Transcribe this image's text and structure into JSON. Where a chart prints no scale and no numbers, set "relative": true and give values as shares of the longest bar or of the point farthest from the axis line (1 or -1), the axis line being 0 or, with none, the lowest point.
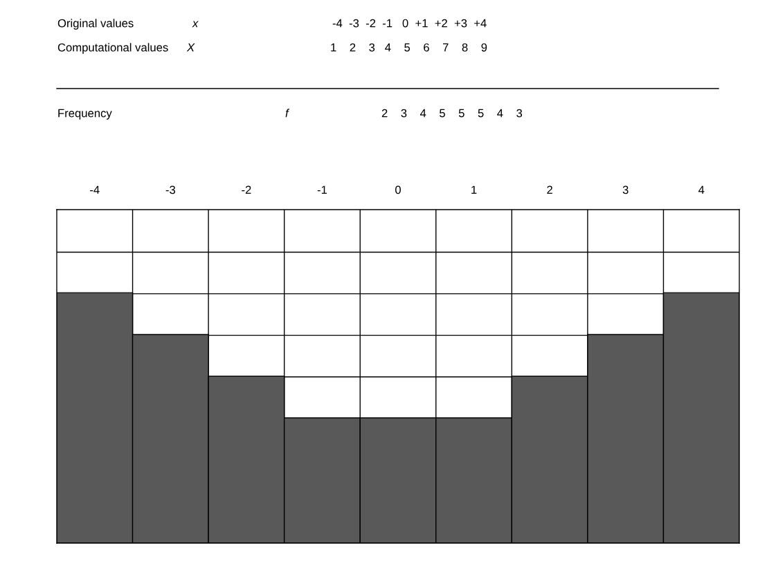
{
  "chart_data": {
    "type": "bar",
    "relative": true,
    "grid": true,
    "color": "#595959",
    "categories": [
      "-4",
      "-3",
      "-2",
      "-1",
      "0",
      "1",
      "2",
      "3",
      "4"
    ],
    "values": [
      1,
      0.833,
      0.667,
      0.5,
      0.5,
      0.5,
      0.667,
      0.833,
      1
    ],
    "annotations": [
      "Original values",
      "x",
      "-4  -3  -2  -1   0  +1  +2  +3  +4",
      "Computational values",
      "X",
      "1    2    3   4    5    6    7    8    9",
      "Frequency",
      "f",
      "2    3    4    5    5    5    4    3"
    ]
  }
}
